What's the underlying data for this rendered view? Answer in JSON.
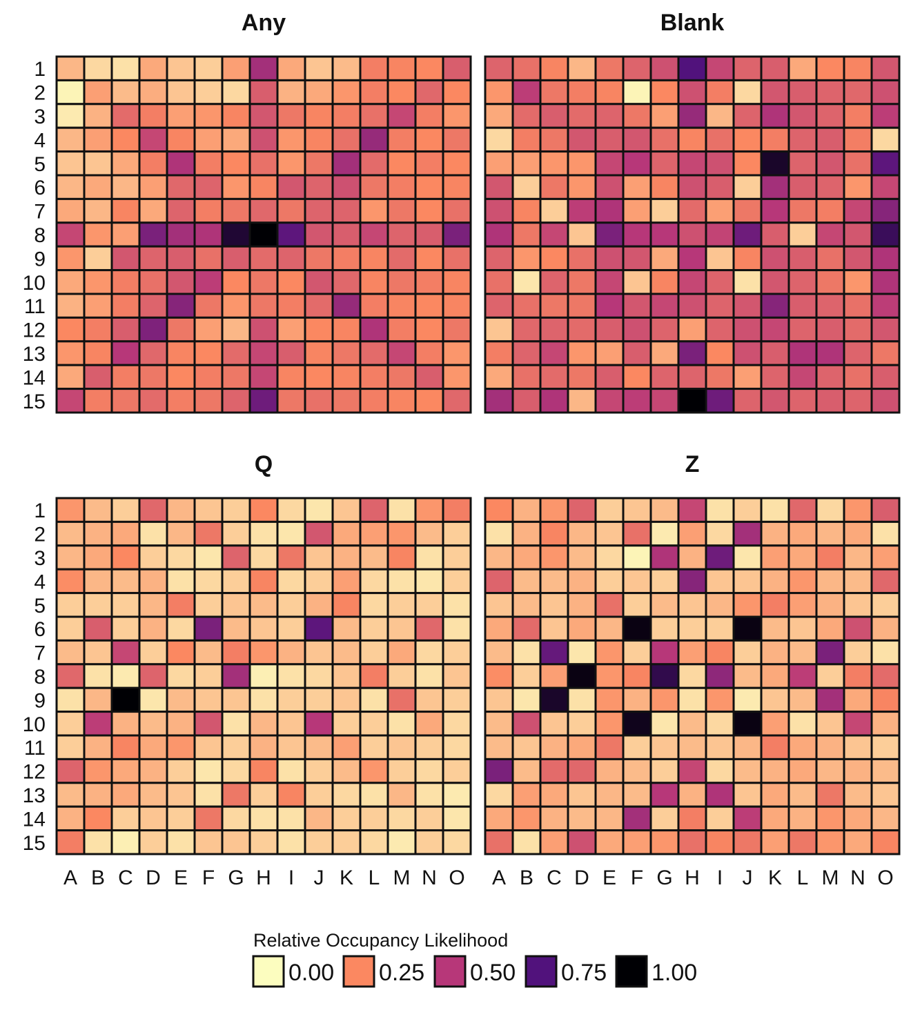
{
  "chart_data": {
    "type": "heatmap",
    "rows": [
      "1",
      "2",
      "3",
      "4",
      "5",
      "6",
      "7",
      "8",
      "9",
      "10",
      "11",
      "12",
      "13",
      "14",
      "15"
    ],
    "columns": [
      "A",
      "B",
      "C",
      "D",
      "E",
      "F",
      "G",
      "H",
      "I",
      "J",
      "K",
      "L",
      "M",
      "N",
      "O"
    ],
    "legend": {
      "title": "Relative Occupancy Likelihood",
      "breaks": [
        0.0,
        0.25,
        0.5,
        0.75,
        1.0
      ],
      "labels": [
        "0.00",
        "0.25",
        "0.50",
        "0.75",
        "1.00"
      ],
      "placement": "bottom"
    },
    "colorscale": [
      {
        "value": 0.0,
        "color": "#FCFDBF"
      },
      {
        "value": 0.25,
        "color": "#FB8861"
      },
      {
        "value": 0.5,
        "color": "#B73779"
      },
      {
        "value": 0.75,
        "color": "#51127C"
      },
      {
        "value": 1.0,
        "color": "#000004"
      }
    ],
    "panels": [
      {
        "title": "Any",
        "values": [
          [
            0.15,
            0.08,
            0.06,
            0.18,
            0.12,
            0.1,
            0.2,
            0.55,
            0.18,
            0.12,
            0.14,
            0.28,
            0.26,
            0.25,
            0.38
          ],
          [
            0.02,
            0.2,
            0.14,
            0.17,
            0.12,
            0.1,
            0.08,
            0.38,
            0.16,
            0.18,
            0.22,
            0.28,
            0.25,
            0.35,
            0.25
          ],
          [
            0.04,
            0.16,
            0.34,
            0.28,
            0.2,
            0.22,
            0.26,
            0.4,
            0.3,
            0.26,
            0.28,
            0.32,
            0.45,
            0.28,
            0.22
          ],
          [
            0.15,
            0.2,
            0.25,
            0.45,
            0.26,
            0.2,
            0.18,
            0.42,
            0.22,
            0.26,
            0.32,
            0.58,
            0.28,
            0.25,
            0.3
          ],
          [
            0.12,
            0.12,
            0.18,
            0.28,
            0.52,
            0.28,
            0.25,
            0.32,
            0.22,
            0.3,
            0.55,
            0.34,
            0.25,
            0.28,
            0.25
          ],
          [
            0.15,
            0.18,
            0.15,
            0.2,
            0.35,
            0.36,
            0.22,
            0.26,
            0.4,
            0.36,
            0.42,
            0.3,
            0.28,
            0.25,
            0.26
          ],
          [
            0.18,
            0.15,
            0.26,
            0.18,
            0.36,
            0.28,
            0.3,
            0.35,
            0.3,
            0.36,
            0.36,
            0.22,
            0.3,
            0.25,
            0.32
          ],
          [
            0.45,
            0.22,
            0.2,
            0.65,
            0.55,
            0.52,
            0.9,
            1.0,
            0.72,
            0.4,
            0.38,
            0.45,
            0.36,
            0.38,
            0.65
          ],
          [
            0.22,
            0.1,
            0.4,
            0.36,
            0.38,
            0.32,
            0.38,
            0.34,
            0.36,
            0.3,
            0.28,
            0.26,
            0.34,
            0.25,
            0.32
          ],
          [
            0.18,
            0.22,
            0.28,
            0.32,
            0.4,
            0.48,
            0.25,
            0.3,
            0.25,
            0.4,
            0.35,
            0.26,
            0.3,
            0.28,
            0.26
          ],
          [
            0.16,
            0.2,
            0.28,
            0.36,
            0.62,
            0.3,
            0.22,
            0.3,
            0.28,
            0.34,
            0.58,
            0.28,
            0.26,
            0.25,
            0.26
          ],
          [
            0.25,
            0.28,
            0.38,
            0.64,
            0.3,
            0.2,
            0.15,
            0.42,
            0.2,
            0.25,
            0.26,
            0.52,
            0.28,
            0.25,
            0.3
          ],
          [
            0.22,
            0.26,
            0.5,
            0.35,
            0.26,
            0.25,
            0.34,
            0.45,
            0.38,
            0.26,
            0.3,
            0.34,
            0.45,
            0.28,
            0.22
          ],
          [
            0.18,
            0.38,
            0.28,
            0.3,
            0.25,
            0.28,
            0.3,
            0.45,
            0.26,
            0.25,
            0.26,
            0.28,
            0.3,
            0.38,
            0.22
          ],
          [
            0.45,
            0.28,
            0.3,
            0.34,
            0.28,
            0.3,
            0.36,
            0.68,
            0.3,
            0.32,
            0.3,
            0.28,
            0.26,
            0.25,
            0.35
          ]
        ]
      },
      {
        "title": "Blank",
        "values": [
          [
            0.36,
            0.32,
            0.26,
            0.15,
            0.3,
            0.36,
            0.42,
            0.75,
            0.45,
            0.36,
            0.38,
            0.18,
            0.25,
            0.26,
            0.4
          ],
          [
            0.22,
            0.48,
            0.3,
            0.28,
            0.26,
            0.02,
            0.25,
            0.42,
            0.28,
            0.08,
            0.4,
            0.38,
            0.36,
            0.35,
            0.42
          ],
          [
            0.18,
            0.34,
            0.38,
            0.34,
            0.36,
            0.3,
            0.2,
            0.58,
            0.15,
            0.36,
            0.52,
            0.4,
            0.36,
            0.28,
            0.48
          ],
          [
            0.08,
            0.28,
            0.3,
            0.4,
            0.38,
            0.4,
            0.32,
            0.26,
            0.32,
            0.25,
            0.28,
            0.36,
            0.38,
            0.28,
            0.08
          ],
          [
            0.2,
            0.2,
            0.22,
            0.22,
            0.45,
            0.5,
            0.36,
            0.45,
            0.42,
            0.25,
            0.92,
            0.36,
            0.4,
            0.32,
            0.72
          ],
          [
            0.4,
            0.1,
            0.3,
            0.22,
            0.42,
            0.2,
            0.26,
            0.42,
            0.38,
            0.1,
            0.55,
            0.38,
            0.36,
            0.22,
            0.45
          ],
          [
            0.42,
            0.26,
            0.1,
            0.48,
            0.52,
            0.2,
            0.1,
            0.34,
            0.2,
            0.3,
            0.5,
            0.3,
            0.28,
            0.45,
            0.62
          ],
          [
            0.52,
            0.3,
            0.45,
            0.12,
            0.65,
            0.5,
            0.5,
            0.42,
            0.46,
            0.68,
            0.38,
            0.1,
            0.45,
            0.4,
            0.82
          ],
          [
            0.36,
            0.22,
            0.25,
            0.32,
            0.42,
            0.4,
            0.18,
            0.5,
            0.12,
            0.26,
            0.42,
            0.38,
            0.32,
            0.4,
            0.52
          ],
          [
            0.32,
            0.05,
            0.36,
            0.3,
            0.45,
            0.12,
            0.26,
            0.45,
            0.36,
            0.06,
            0.4,
            0.36,
            0.3,
            0.22,
            0.52
          ],
          [
            0.36,
            0.32,
            0.3,
            0.3,
            0.5,
            0.4,
            0.45,
            0.42,
            0.36,
            0.4,
            0.62,
            0.38,
            0.36,
            0.32,
            0.48
          ],
          [
            0.12,
            0.35,
            0.36,
            0.34,
            0.38,
            0.42,
            0.36,
            0.2,
            0.36,
            0.42,
            0.45,
            0.36,
            0.38,
            0.34,
            0.4
          ],
          [
            0.28,
            0.36,
            0.45,
            0.22,
            0.2,
            0.38,
            0.18,
            0.65,
            0.25,
            0.42,
            0.38,
            0.52,
            0.52,
            0.36,
            0.3
          ],
          [
            0.18,
            0.32,
            0.34,
            0.3,
            0.38,
            0.25,
            0.36,
            0.36,
            0.3,
            0.2,
            0.36,
            0.45,
            0.36,
            0.32,
            0.38
          ],
          [
            0.55,
            0.38,
            0.52,
            0.15,
            0.45,
            0.48,
            0.45,
            1.0,
            0.68,
            0.36,
            0.4,
            0.36,
            0.38,
            0.36,
            0.42
          ]
        ]
      },
      {
        "title": "Q",
        "values": [
          [
            0.22,
            0.14,
            0.1,
            0.35,
            0.15,
            0.12,
            0.1,
            0.25,
            0.08,
            0.05,
            0.12,
            0.36,
            0.06,
            0.22,
            0.28
          ],
          [
            0.14,
            0.16,
            0.18,
            0.06,
            0.15,
            0.3,
            0.1,
            0.06,
            0.05,
            0.4,
            0.18,
            0.2,
            0.22,
            0.14,
            0.1
          ],
          [
            0.15,
            0.18,
            0.25,
            0.1,
            0.08,
            0.05,
            0.36,
            0.08,
            0.3,
            0.12,
            0.16,
            0.14,
            0.26,
            0.06,
            0.1
          ],
          [
            0.24,
            0.15,
            0.14,
            0.16,
            0.06,
            0.08,
            0.1,
            0.26,
            0.08,
            0.1,
            0.2,
            0.08,
            0.06,
            0.05,
            0.1
          ],
          [
            0.1,
            0.1,
            0.1,
            0.15,
            0.28,
            0.1,
            0.12,
            0.14,
            0.1,
            0.16,
            0.26,
            0.08,
            0.1,
            0.1,
            0.06
          ],
          [
            0.1,
            0.38,
            0.1,
            0.16,
            0.08,
            0.65,
            0.14,
            0.12,
            0.1,
            0.72,
            0.14,
            0.1,
            0.12,
            0.35,
            0.06
          ],
          [
            0.14,
            0.12,
            0.45,
            0.1,
            0.25,
            0.14,
            0.28,
            0.22,
            0.16,
            0.12,
            0.14,
            0.1,
            0.18,
            0.08,
            0.1
          ],
          [
            0.35,
            0.06,
            0.04,
            0.36,
            0.08,
            0.1,
            0.55,
            0.03,
            0.06,
            0.08,
            0.12,
            0.28,
            0.1,
            0.06,
            0.12
          ],
          [
            0.06,
            0.15,
            1.0,
            0.05,
            0.14,
            0.12,
            0.12,
            0.06,
            0.1,
            0.1,
            0.12,
            0.06,
            0.32,
            0.12,
            0.1
          ],
          [
            0.1,
            0.48,
            0.16,
            0.14,
            0.16,
            0.4,
            0.06,
            0.15,
            0.12,
            0.5,
            0.1,
            0.1,
            0.06,
            0.18,
            0.08
          ],
          [
            0.1,
            0.16,
            0.26,
            0.18,
            0.22,
            0.12,
            0.1,
            0.16,
            0.12,
            0.14,
            0.2,
            0.1,
            0.12,
            0.1,
            0.08
          ],
          [
            0.36,
            0.22,
            0.18,
            0.16,
            0.1,
            0.05,
            0.08,
            0.26,
            0.06,
            0.1,
            0.14,
            0.22,
            0.1,
            0.08,
            0.1
          ],
          [
            0.14,
            0.16,
            0.18,
            0.14,
            0.12,
            0.06,
            0.3,
            0.1,
            0.26,
            0.1,
            0.08,
            0.06,
            0.15,
            0.06,
            0.04
          ],
          [
            0.16,
            0.25,
            0.1,
            0.12,
            0.1,
            0.3,
            0.08,
            0.06,
            0.06,
            0.15,
            0.1,
            0.1,
            0.08,
            0.1,
            0.05
          ],
          [
            0.28,
            0.06,
            0.03,
            0.1,
            0.06,
            0.12,
            0.12,
            0.1,
            0.06,
            0.1,
            0.1,
            0.08,
            0.04,
            0.1,
            0.08
          ]
        ]
      },
      {
        "title": "Z",
        "values": [
          [
            0.25,
            0.16,
            0.22,
            0.36,
            0.1,
            0.12,
            0.14,
            0.45,
            0.06,
            0.1,
            0.06,
            0.35,
            0.08,
            0.22,
            0.38
          ],
          [
            0.06,
            0.16,
            0.26,
            0.15,
            0.12,
            0.32,
            0.04,
            0.2,
            0.08,
            0.55,
            0.16,
            0.18,
            0.15,
            0.18,
            0.06
          ],
          [
            0.15,
            0.18,
            0.22,
            0.14,
            0.08,
            0.02,
            0.52,
            0.16,
            0.68,
            0.05,
            0.2,
            0.18,
            0.28,
            0.15,
            0.2
          ],
          [
            0.36,
            0.14,
            0.14,
            0.16,
            0.1,
            0.12,
            0.1,
            0.62,
            0.12,
            0.12,
            0.16,
            0.22,
            0.15,
            0.14,
            0.35
          ],
          [
            0.12,
            0.14,
            0.12,
            0.16,
            0.32,
            0.1,
            0.14,
            0.12,
            0.15,
            0.22,
            0.28,
            0.2,
            0.16,
            0.12,
            0.1
          ],
          [
            0.18,
            0.34,
            0.12,
            0.18,
            0.15,
            0.97,
            0.1,
            0.1,
            0.1,
            0.97,
            0.14,
            0.12,
            0.18,
            0.42,
            0.16
          ],
          [
            0.14,
            0.06,
            0.7,
            0.05,
            0.22,
            0.1,
            0.5,
            0.2,
            0.26,
            0.1,
            0.16,
            0.14,
            0.65,
            0.1,
            0.06
          ],
          [
            0.24,
            0.1,
            0.2,
            0.97,
            0.22,
            0.26,
            0.85,
            0.08,
            0.6,
            0.14,
            0.18,
            0.48,
            0.1,
            0.28,
            0.34
          ],
          [
            0.12,
            0.05,
            0.92,
            0.06,
            0.22,
            0.16,
            0.22,
            0.06,
            0.22,
            0.04,
            0.12,
            0.14,
            0.55,
            0.18,
            0.26
          ],
          [
            0.14,
            0.42,
            0.12,
            0.1,
            0.22,
            0.95,
            0.05,
            0.14,
            0.08,
            0.97,
            0.2,
            0.06,
            0.12,
            0.45,
            0.16
          ],
          [
            0.14,
            0.12,
            0.16,
            0.18,
            0.3,
            0.1,
            0.12,
            0.14,
            0.12,
            0.15,
            0.28,
            0.18,
            0.16,
            0.12,
            0.1
          ],
          [
            0.65,
            0.14,
            0.34,
            0.35,
            0.16,
            0.14,
            0.1,
            0.45,
            0.08,
            0.14,
            0.16,
            0.18,
            0.15,
            0.16,
            0.14
          ],
          [
            0.08,
            0.2,
            0.18,
            0.12,
            0.15,
            0.14,
            0.5,
            0.16,
            0.52,
            0.12,
            0.18,
            0.14,
            0.3,
            0.14,
            0.12
          ],
          [
            0.18,
            0.22,
            0.16,
            0.14,
            0.15,
            0.55,
            0.1,
            0.28,
            0.1,
            0.48,
            0.18,
            0.16,
            0.22,
            0.18,
            0.15
          ],
          [
            0.32,
            0.06,
            0.2,
            0.42,
            0.18,
            0.2,
            0.22,
            0.32,
            0.26,
            0.3,
            0.2,
            0.3,
            0.22,
            0.18,
            0.26
          ]
        ]
      }
    ]
  }
}
